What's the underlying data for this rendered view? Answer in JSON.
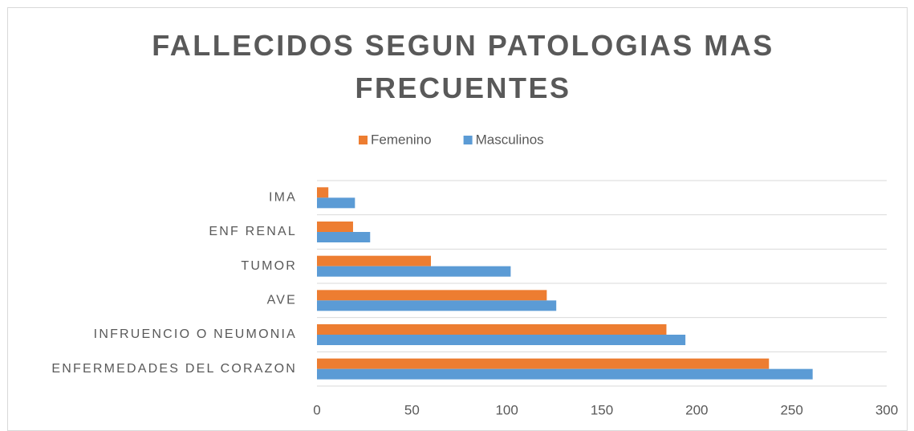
{
  "chart_data": {
    "type": "bar",
    "orientation": "horizontal",
    "title": "FALLECIDOS SEGUN PATOLOGIAS MAS FRECUENTES",
    "categories": [
      "ENFERMEDADES DEL CORAZON",
      "INFRUENCIO O NEUMONIA",
      "AVE",
      "TUMOR",
      "ENF RENAL",
      "IMA"
    ],
    "series": [
      {
        "name": "Femenino",
        "color": "#ed7d31",
        "values": [
          238,
          184,
          121,
          60,
          19,
          6
        ]
      },
      {
        "name": "Masculinos",
        "color": "#5b9bd5",
        "values": [
          261,
          194,
          126,
          102,
          28,
          20
        ]
      }
    ],
    "xlim": [
      0,
      300
    ],
    "xticks": [
      0,
      50,
      100,
      150,
      200,
      250,
      300
    ],
    "legend": "top",
    "grid": true
  }
}
